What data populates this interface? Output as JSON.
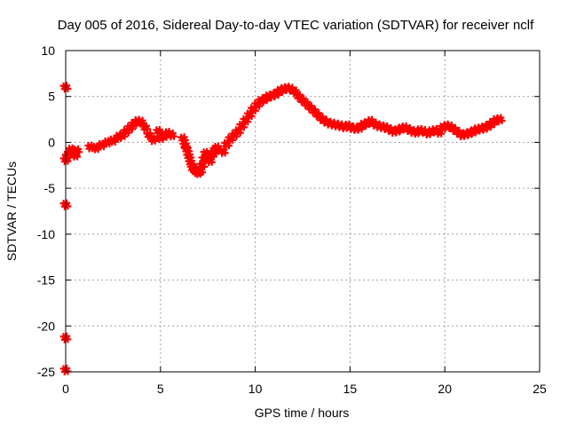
{
  "chart_data": {
    "type": "scatter",
    "title": "Day 005 of 2016, Sidereal Day-to-day VTEC variation (SDTVAR) for receiver nclf",
    "xlabel": "GPS time / hours",
    "ylabel": "SDTVAR / TECUs",
    "xlim": [
      0,
      25
    ],
    "ylim": [
      -25,
      10
    ],
    "x_ticks": [
      0,
      5,
      10,
      15,
      20,
      25
    ],
    "y_ticks": [
      -25,
      -20,
      -15,
      -10,
      -5,
      0,
      5,
      10
    ],
    "x_tick_labels": [
      "0",
      "5",
      "10",
      "15",
      "20",
      "25"
    ],
    "y_tick_labels": [
      "-25",
      "-20",
      "-15",
      "-10",
      "-5",
      "0",
      "5",
      "10"
    ],
    "grid": true,
    "series_color": "#ff0000",
    "series": [
      {
        "name": "SDTVAR",
        "x": [
          0.0,
          0.0,
          0.0,
          0.0,
          0.0,
          0.1,
          0.2,
          0.3,
          0.4,
          0.5,
          0.6,
          1.3,
          1.6,
          1.9,
          2.2,
          2.5,
          2.8,
          3.0,
          3.2,
          3.4,
          3.6,
          3.8,
          4.0,
          4.2,
          4.4,
          4.6,
          4.9,
          5.0,
          5.2,
          5.4,
          5.6,
          6.2,
          6.3,
          6.4,
          6.5,
          6.6,
          6.7,
          6.8,
          6.9,
          7.0,
          7.1,
          7.2,
          7.3,
          7.4,
          7.5,
          7.6,
          7.7,
          7.8,
          7.9,
          8.0,
          8.3,
          8.5,
          8.7,
          8.9,
          9.1,
          9.3,
          9.5,
          9.7,
          9.9,
          10.1,
          10.3,
          10.5,
          10.7,
          10.9,
          11.1,
          11.3,
          11.5,
          11.7,
          11.9,
          12.1,
          12.3,
          12.5,
          12.7,
          12.9,
          13.1,
          13.3,
          13.5,
          13.7,
          13.9,
          14.1,
          14.3,
          14.5,
          14.7,
          14.9,
          15.1,
          15.3,
          15.5,
          15.7,
          15.9,
          16.1,
          16.3,
          16.5,
          16.7,
          16.9,
          17.1,
          17.3,
          17.5,
          17.7,
          17.9,
          18.1,
          18.3,
          18.5,
          18.7,
          18.9,
          19.1,
          19.3,
          19.5,
          19.7,
          19.9,
          20.1,
          20.3,
          20.5,
          20.7,
          20.9,
          21.1,
          21.3,
          21.5,
          21.7,
          21.9,
          22.1,
          22.3,
          22.5,
          22.7,
          22.9
        ],
        "y": [
          6.0,
          -6.8,
          -21.3,
          -24.8,
          -1.9,
          -1.5,
          -1.2,
          -0.8,
          -1.0,
          -1.4,
          -0.9,
          -0.5,
          -0.6,
          -0.3,
          0.0,
          0.2,
          0.6,
          0.8,
          1.2,
          1.6,
          2.0,
          2.3,
          2.2,
          1.6,
          0.8,
          0.3,
          1.2,
          0.5,
          0.7,
          1.0,
          0.8,
          0.4,
          -0.3,
          -0.8,
          -1.5,
          -2.2,
          -2.8,
          -3.0,
          -3.2,
          -3.3,
          -3.1,
          -2.5,
          -1.8,
          -1.2,
          -1.6,
          -2.0,
          -1.4,
          -1.1,
          -0.8,
          -0.6,
          -1.0,
          -0.2,
          0.4,
          0.8,
          1.2,
          1.8,
          2.4,
          3.0,
          3.6,
          4.1,
          4.5,
          4.7,
          5.0,
          5.1,
          5.3,
          5.6,
          5.8,
          5.9,
          5.8,
          5.5,
          5.0,
          4.6,
          4.2,
          3.8,
          3.4,
          3.0,
          2.6,
          2.3,
          2.1,
          2.0,
          1.9,
          1.8,
          1.7,
          1.8,
          1.6,
          1.5,
          1.6,
          1.9,
          2.1,
          2.3,
          2.0,
          1.8,
          1.7,
          1.6,
          1.4,
          1.2,
          1.3,
          1.5,
          1.6,
          1.4,
          1.2,
          1.1,
          1.3,
          1.2,
          1.0,
          1.2,
          1.3,
          1.1,
          1.6,
          1.8,
          1.7,
          1.4,
          1.1,
          0.8,
          0.9,
          1.0,
          1.2,
          1.4,
          1.5,
          1.6,
          1.8,
          2.1,
          2.4,
          2.5
        ]
      }
    ]
  }
}
